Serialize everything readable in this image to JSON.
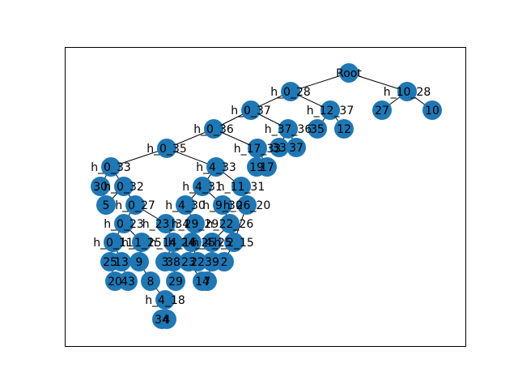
{
  "colors": {
    "node": "#1f77b4",
    "edge": "#000000",
    "text": "#000000",
    "frame": "#000000"
  },
  "graph": {
    "type": "tree",
    "nodes": [
      "Root",
      "h_0_28",
      "h_10_28",
      "27",
      "10",
      "h_0_37",
      "h_12_37",
      "35",
      "12",
      "h_0_36",
      "h_37_36",
      "33",
      "37",
      "h_0_35",
      "h_17_33",
      "19",
      "17",
      "h_0_33",
      "h_4_33",
      "30",
      "h_0_32",
      "5",
      "h_4_31",
      "h_11_31",
      "h_0_27",
      "h_4_30",
      "h_9_30",
      "h_26_20",
      "h_0_23",
      "h_23_34",
      "h_29_29",
      "h_22_26",
      "h_0_11",
      "h_1_25",
      "h_14_16",
      "h_24_25",
      "h_4_25",
      "h_2_15",
      "25",
      "13",
      "9",
      "3",
      "38",
      "23",
      "22",
      "39",
      "2",
      "20",
      "43",
      "8",
      "29",
      "14",
      "7",
      "h_4_18",
      "34",
      "4"
    ],
    "edges": [
      [
        "Root",
        "h_0_28"
      ],
      [
        "Root",
        "h_10_28"
      ],
      [
        "h_10_28",
        "27"
      ],
      [
        "h_10_28",
        "10"
      ],
      [
        "h_0_28",
        "h_0_37"
      ],
      [
        "h_0_28",
        "h_12_37"
      ],
      [
        "h_12_37",
        "35"
      ],
      [
        "h_12_37",
        "12"
      ],
      [
        "h_0_37",
        "h_0_36"
      ],
      [
        "h_0_37",
        "h_37_36"
      ],
      [
        "h_37_36",
        "33"
      ],
      [
        "h_37_36",
        "37"
      ],
      [
        "h_0_36",
        "h_0_35"
      ],
      [
        "h_0_36",
        "h_17_33"
      ],
      [
        "h_17_33",
        "19"
      ],
      [
        "h_17_33",
        "17"
      ],
      [
        "h_0_35",
        "h_0_33"
      ],
      [
        "h_0_35",
        "h_4_33"
      ],
      [
        "h_0_33",
        "30"
      ],
      [
        "h_0_33",
        "h_0_32"
      ],
      [
        "h_0_32",
        "5"
      ],
      [
        "h_0_32",
        "h_0_27"
      ],
      [
        "h_4_33",
        "h_4_31"
      ],
      [
        "h_4_33",
        "h_11_31"
      ],
      [
        "h_4_31",
        "h_4_30"
      ],
      [
        "h_4_31",
        "h_9_30"
      ],
      [
        "h_11_31",
        "h_26_20"
      ],
      [
        "h_0_27",
        "h_0_23"
      ],
      [
        "h_0_27",
        "h_23_34"
      ],
      [
        "h_4_30",
        "h_29_29"
      ],
      [
        "h_9_30",
        "h_22_26"
      ],
      [
        "h_0_23",
        "h_0_11"
      ],
      [
        "h_0_23",
        "h_1_25"
      ],
      [
        "h_23_34",
        "h_14_16"
      ],
      [
        "h_29_29",
        "h_24_25"
      ],
      [
        "h_22_26",
        "h_4_25"
      ],
      [
        "h_26_20",
        "h_2_15"
      ],
      [
        "h_0_11",
        "25"
      ],
      [
        "h_0_11",
        "13"
      ],
      [
        "h_1_25",
        "9"
      ],
      [
        "h_14_16",
        "3"
      ],
      [
        "h_14_16",
        "38"
      ],
      [
        "h_24_25",
        "23"
      ],
      [
        "h_24_25",
        "22"
      ],
      [
        "h_4_25",
        "39"
      ],
      [
        "h_2_15",
        "2"
      ],
      [
        "25",
        "20"
      ],
      [
        "13",
        "43"
      ],
      [
        "9",
        "8"
      ],
      [
        "38",
        "29"
      ],
      [
        "23",
        "14"
      ],
      [
        "39",
        "7"
      ],
      [
        "8",
        "h_4_18"
      ],
      [
        "h_4_18",
        "34"
      ],
      [
        "h_4_18",
        "4"
      ]
    ]
  }
}
